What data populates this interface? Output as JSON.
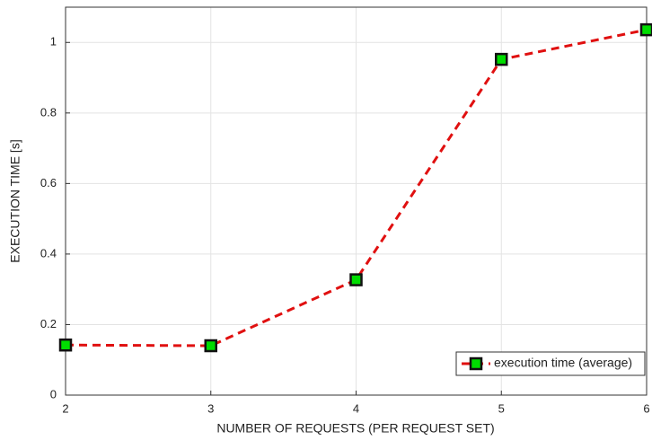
{
  "chart_data": {
    "type": "line",
    "xlabel": "NUMBER OF REQUESTS (PER REQUEST SET)",
    "ylabel": "EXECUTION TIME [s]",
    "x": [
      2,
      3,
      4,
      5,
      6
    ],
    "series": [
      {
        "name": "execution time (average)",
        "color": "#e01010",
        "marker_color": "#00dd00",
        "values": [
          0.142,
          0.14,
          0.327,
          0.952,
          1.036
        ]
      }
    ],
    "xlim": [
      2,
      6
    ],
    "xticks": [
      2,
      3,
      4,
      5,
      6
    ],
    "ylim": [
      0,
      1.1
    ],
    "yticks": [
      0,
      0.2,
      0.4,
      0.6,
      0.8,
      1
    ],
    "grid": true,
    "legend": "lower right"
  }
}
